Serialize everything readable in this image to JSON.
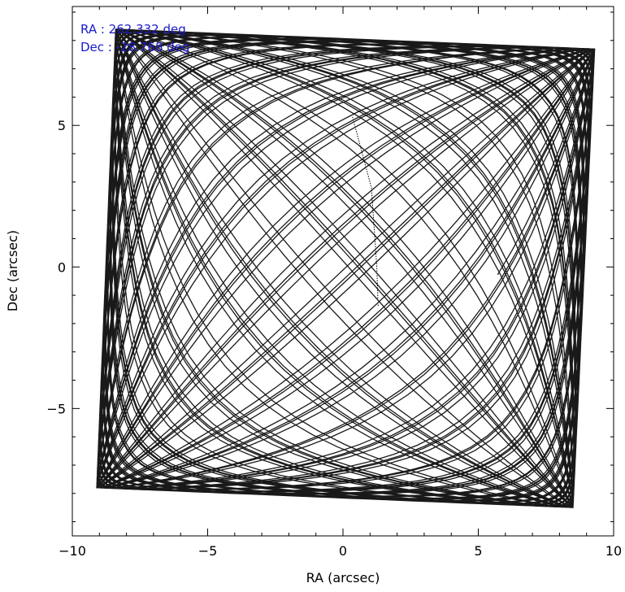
{
  "chart_data": {
    "type": "line",
    "title": "",
    "xlabel": "RA (arcsec)",
    "ylabel": "Dec (arcsec)",
    "xlim": [
      -10,
      10
    ],
    "ylim": [
      -9.5,
      9.2
    ],
    "xticks": [
      -10,
      -5,
      0,
      5,
      10
    ],
    "xtick_labels": [
      "−10",
      "−5",
      "0",
      "5",
      "10"
    ],
    "yticks": [
      -5,
      0,
      5
    ],
    "ytick_labels": [
      "−5",
      "0",
      "5"
    ],
    "grid": false,
    "legend": "none",
    "line_color": "#000000",
    "annotations": [
      {
        "text": "RA : 262.332 deg",
        "color": "#1a1acc"
      },
      {
        "text": "Dec : -28.768 deg",
        "color": "#1a1acc"
      }
    ],
    "corners": {
      "top_left": [
        -8.4,
        8.4
      ],
      "top_right": [
        9.3,
        7.7
      ],
      "bottom_right": [
        8.5,
        -8.5
      ],
      "bottom_left": [
        -9.1,
        -7.8
      ]
    },
    "lissajous": {
      "x_amplitude": 8.8,
      "y_amplitude": 8.1,
      "x_freq": 7.93,
      "y_freq": 8.47,
      "cycles": 10
    },
    "center_track": [
      [
        0.35,
        5.3
      ],
      [
        1.05,
        2.8
      ],
      [
        1.25,
        0.0
      ],
      [
        1.3,
        -1.4
      ]
    ]
  }
}
